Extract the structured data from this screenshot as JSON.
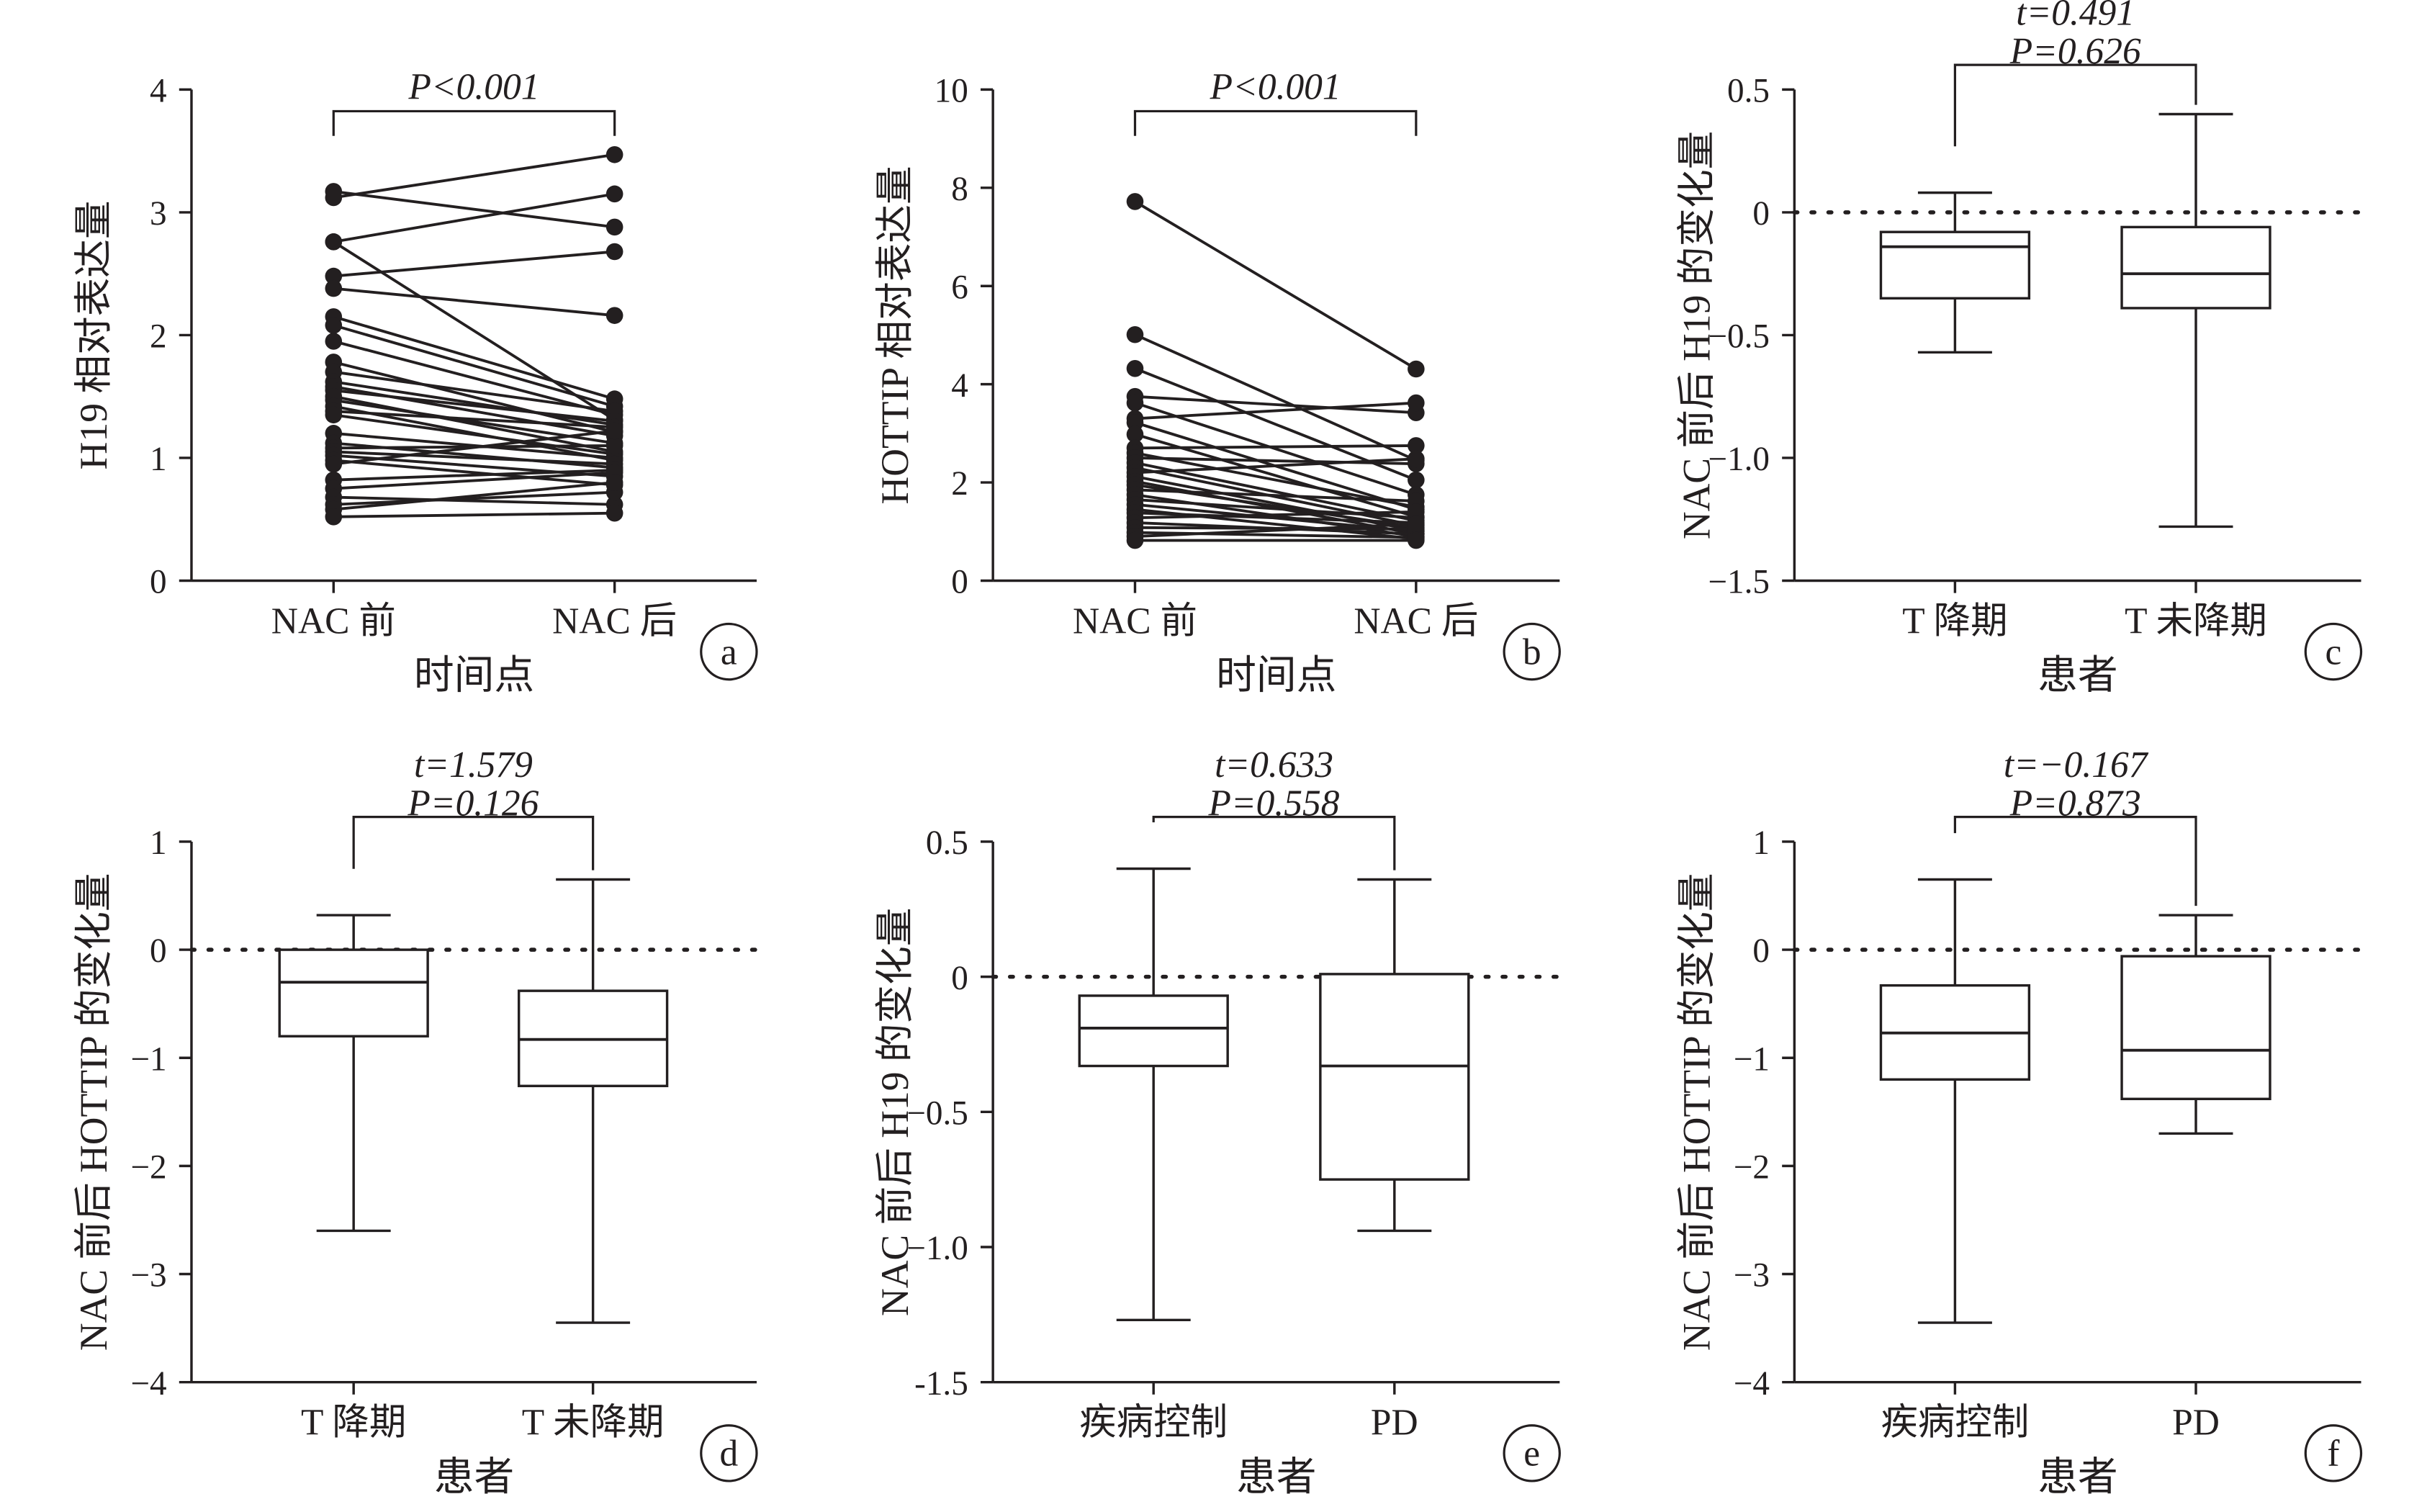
{
  "figure": {
    "ink": "#231f20",
    "panels": [
      {
        "letter": "a",
        "chart_data": {
          "type": "line",
          "subtype": "paired",
          "title": "",
          "xlabel": "时间点",
          "ylabel": "H19 相对表达量",
          "categories": [
            "NAC 前",
            "NAC 后"
          ],
          "ylim": [
            0,
            4
          ],
          "yticks": [
            "0",
            "1",
            "2",
            "3",
            "4"
          ],
          "grid": false,
          "annotation": {
            "line1": "P<0.001"
          },
          "pairs": [
            [
              3.17,
              2.88
            ],
            [
              3.12,
              3.47
            ],
            [
              2.76,
              3.15
            ],
            [
              2.76,
              1.31
            ],
            [
              2.48,
              2.68
            ],
            [
              2.38,
              2.16
            ],
            [
              2.15,
              1.48
            ],
            [
              2.08,
              1.42
            ],
            [
              1.95,
              1.35
            ],
            [
              1.78,
              1.21
            ],
            [
              1.7,
              1.38
            ],
            [
              1.62,
              1.27
            ],
            [
              1.58,
              1.18
            ],
            [
              1.55,
              1.3
            ],
            [
              1.5,
              1.05
            ],
            [
              1.47,
              1.12
            ],
            [
              1.42,
              0.98
            ],
            [
              1.38,
              1.25
            ],
            [
              1.35,
              1.03
            ],
            [
              1.2,
              1.0
            ],
            [
              1.12,
              0.92
            ],
            [
              1.08,
              1.1
            ],
            [
              1.05,
              0.95
            ],
            [
              1.02,
              0.85
            ],
            [
              0.98,
              0.78
            ],
            [
              0.95,
              1.22
            ],
            [
              0.82,
              0.9
            ],
            [
              0.75,
              0.88
            ],
            [
              0.68,
              0.62
            ],
            [
              0.62,
              0.72
            ],
            [
              0.58,
              0.8
            ],
            [
              0.52,
              0.55
            ]
          ]
        }
      },
      {
        "letter": "b",
        "chart_data": {
          "type": "line",
          "subtype": "paired",
          "title": "",
          "xlabel": "时间点",
          "ylabel": "HOTTIP 相对表达量",
          "categories": [
            "NAC 前",
            "NAC 后"
          ],
          "ylim": [
            0,
            10
          ],
          "yticks": [
            "0",
            "2",
            "4",
            "6",
            "8",
            "10"
          ],
          "grid": false,
          "annotation": {
            "line1": "P<0.001"
          },
          "pairs": [
            [
              7.72,
              4.31
            ],
            [
              5.01,
              2.45
            ],
            [
              4.32,
              2.05
            ],
            [
              3.75,
              3.42
            ],
            [
              3.62,
              1.75
            ],
            [
              3.3,
              3.62
            ],
            [
              3.22,
              1.45
            ],
            [
              2.98,
              1.3
            ],
            [
              2.7,
              2.75
            ],
            [
              2.6,
              1.5
            ],
            [
              2.5,
              2.38
            ],
            [
              2.4,
              1.22
            ],
            [
              2.3,
              1.12
            ],
            [
              2.2,
              2.48
            ],
            [
              2.12,
              1.02
            ],
            [
              2.02,
              0.95
            ],
            [
              1.95,
              1.08
            ],
            [
              1.85,
              1.62
            ],
            [
              1.75,
              0.9
            ],
            [
              1.65,
              1.28
            ],
            [
              1.55,
              1.0
            ],
            [
              1.45,
              0.85
            ],
            [
              1.38,
              1.18
            ],
            [
              1.28,
              1.4
            ],
            [
              1.18,
              0.95
            ],
            [
              1.08,
              1.05
            ],
            [
              0.98,
              0.88
            ],
            [
              0.9,
              1.15
            ],
            [
              0.82,
              0.82
            ]
          ]
        }
      },
      {
        "letter": "c",
        "chart_data": {
          "type": "box",
          "title": "",
          "xlabel": "患者",
          "ylabel": "NAC 前后 H19 的变化量",
          "categories": [
            "T 降期",
            "T 未降期"
          ],
          "ylim": [
            -1.5,
            0.5
          ],
          "yticks": [
            "0.5",
            "0",
            "−0.5",
            "−1.0",
            "−1.5"
          ],
          "grid": false,
          "reference_line": 0,
          "annotation": {
            "line1": "t=0.491",
            "line2": "P=0.626"
          },
          "boxes": [
            {
              "min": -0.57,
              "q1": -0.35,
              "median": -0.14,
              "q3": -0.08,
              "max": 0.08
            },
            {
              "min": -1.28,
              "q1": -0.39,
              "median": -0.25,
              "q3": -0.06,
              "max": 0.4
            }
          ]
        }
      },
      {
        "letter": "d",
        "chart_data": {
          "type": "box",
          "title": "",
          "xlabel": "患者",
          "ylabel": "NAC 前后 HOTTIP 的变化量",
          "categories": [
            "T 降期",
            "T 未降期"
          ],
          "ylim": [
            -4,
            1
          ],
          "yticks": [
            "1",
            "0",
            "−1",
            "−2",
            "−3",
            "−4"
          ],
          "grid": false,
          "reference_line": 0,
          "annotation": {
            "line1": "t=1.579",
            "line2": "P=0.126"
          },
          "boxes": [
            {
              "min": -2.6,
              "q1": -0.8,
              "median": -0.3,
              "q3": 0.0,
              "max": 0.32
            },
            {
              "min": -3.45,
              "q1": -1.26,
              "median": -0.83,
              "q3": -0.38,
              "max": 0.65
            }
          ]
        }
      },
      {
        "letter": "e",
        "chart_data": {
          "type": "box",
          "title": "",
          "xlabel": "患者",
          "ylabel": "NAC 前后 H19 的变化量",
          "categories": [
            "疾病控制",
            "PD"
          ],
          "ylim": [
            -1.5,
            0.5
          ],
          "yticks": [
            "0.5",
            "0",
            "−0.5",
            "−1.0",
            "-1.5"
          ],
          "grid": false,
          "reference_line": 0,
          "annotation": {
            "line1": "t=0.633",
            "line2": "P=0.558"
          },
          "boxes": [
            {
              "min": -1.27,
              "q1": -0.33,
              "median": -0.19,
              "q3": -0.07,
              "max": 0.4
            },
            {
              "min": -0.94,
              "q1": -0.75,
              "median": -0.33,
              "q3": 0.01,
              "max": 0.36
            }
          ]
        }
      },
      {
        "letter": "f",
        "chart_data": {
          "type": "box",
          "title": "",
          "xlabel": "患者",
          "ylabel": "NAC 前后 HOTTIP 的变化量",
          "categories": [
            "疾病控制",
            "PD"
          ],
          "ylim": [
            -4,
            1
          ],
          "yticks": [
            "1",
            "0",
            "−1",
            "−2",
            "−3",
            "−4"
          ],
          "grid": false,
          "reference_line": 0,
          "annotation": {
            "line1": "t=−0.167",
            "line2": "P=0.873"
          },
          "boxes": [
            {
              "min": -3.45,
              "q1": -1.2,
              "median": -0.77,
              "q3": -0.33,
              "max": 0.65
            },
            {
              "min": -1.7,
              "q1": -1.38,
              "median": -0.93,
              "q3": -0.06,
              "max": 0.32
            }
          ]
        }
      }
    ]
  }
}
